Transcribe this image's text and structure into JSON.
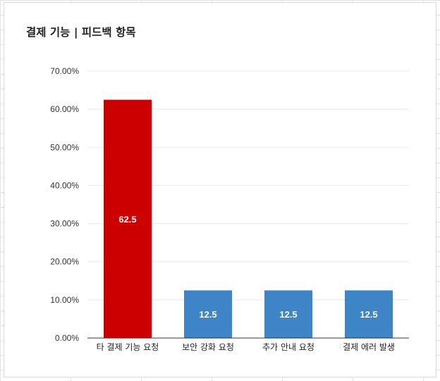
{
  "chart_data": {
    "type": "bar",
    "title": "결제 기능 | 피드백 항목",
    "categories": [
      "타 결제 기능 요청",
      "보안 강화 요청",
      "추가 안내 요청",
      "결제 에러 발생"
    ],
    "values": [
      62.5,
      12.5,
      12.5,
      12.5
    ],
    "data_labels": [
      "62.5",
      "12.5",
      "12.5",
      "12.5"
    ],
    "y_ticks": [
      "0.00%",
      "10.00%",
      "20.00%",
      "30.00%",
      "40.00%",
      "50.00%",
      "60.00%",
      "70.00%"
    ],
    "ylim": [
      0,
      70
    ],
    "grid": true,
    "colors": [
      "#cc0000",
      "#3d85c6",
      "#3d85c6",
      "#3d85c6"
    ]
  }
}
